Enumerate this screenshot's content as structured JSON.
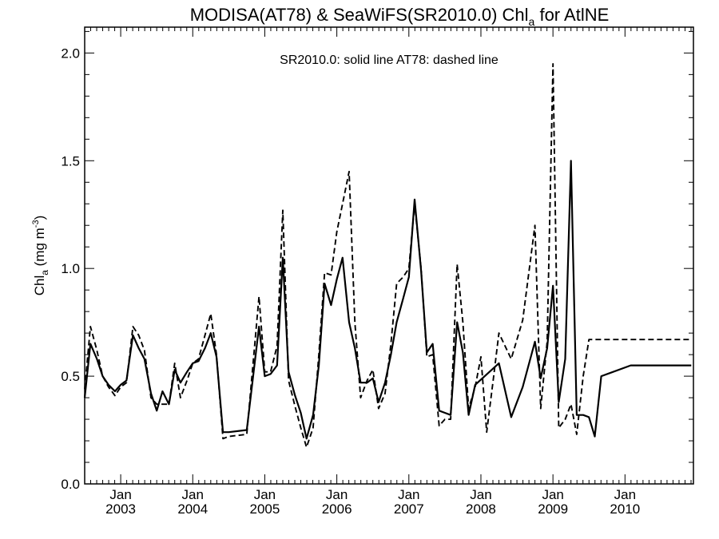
{
  "chart_data": {
    "type": "line",
    "title_main": "MODISA(AT78) & SeaWiFS(SR2010.0)  Chl",
    "title_sub": "a",
    "title_tail": " for AtlNE",
    "annotation": "SR2010.0: solid line   AT78: dashed line",
    "ylabel_main": "Chl",
    "ylabel_sub": "a",
    "ylabel_units": " (mg m",
    "ylabel_exp": "-3",
    "ylabel_close": ")",
    "ylim": [
      0.0,
      2.12
    ],
    "xlim": [
      2002.5,
      2010.95
    ],
    "y_ticks": [
      {
        "value": 0.0,
        "label": "0.0"
      },
      {
        "value": 0.5,
        "label": "0.5"
      },
      {
        "value": 1.0,
        "label": "1.0"
      },
      {
        "value": 1.5,
        "label": "1.5"
      },
      {
        "value": 2.0,
        "label": "2.0"
      }
    ],
    "x_ticks": [
      {
        "value": 2003.0,
        "month": "Jan",
        "year": "2003"
      },
      {
        "value": 2004.0,
        "month": "Jan",
        "year": "2004"
      },
      {
        "value": 2005.0,
        "month": "Jan",
        "year": "2005"
      },
      {
        "value": 2006.0,
        "month": "Jan",
        "year": "2006"
      },
      {
        "value": 2007.0,
        "month": "Jan",
        "year": "2007"
      },
      {
        "value": 2008.0,
        "month": "Jan",
        "year": "2008"
      },
      {
        "value": 2009.0,
        "month": "Jan",
        "year": "2009"
      },
      {
        "value": 2010.0,
        "month": "Jan",
        "year": "2010"
      }
    ],
    "series": [
      {
        "style": "solid",
        "x": [
          2002.5,
          2002.58,
          2002.67,
          2002.75,
          2002.83,
          2002.92,
          2003.0,
          2003.08,
          2003.17,
          2003.25,
          2003.33,
          2003.42,
          2003.5,
          2003.58,
          2003.67,
          2003.75,
          2003.83,
          2003.92,
          2004.0,
          2004.08,
          2004.17,
          2004.25,
          2004.33,
          2004.42,
          2004.5,
          2004.75,
          2004.92,
          2005.0,
          2005.08,
          2005.17,
          2005.25,
          2005.33,
          2005.42,
          2005.5,
          2005.58,
          2005.67,
          2005.75,
          2005.83,
          2005.92,
          2006.0,
          2006.08,
          2006.17,
          2006.25,
          2006.33,
          2006.42,
          2006.5,
          2006.58,
          2006.67,
          2006.75,
          2006.83,
          2006.92,
          2007.0,
          2007.08,
          2007.17,
          2007.25,
          2007.33,
          2007.42,
          2007.5,
          2007.58,
          2007.67,
          2007.75,
          2007.83,
          2007.92,
          2008.25,
          2008.42,
          2008.58,
          2008.75,
          2008.83,
          2008.92,
          2009.0,
          2009.08,
          2009.17,
          2009.25,
          2009.33,
          2009.42,
          2009.5,
          2009.58,
          2009.67,
          2010.08,
          2010.17,
          2010.25,
          2010.33,
          2010.42,
          2010.5,
          2010.58,
          2010.67,
          2010.75,
          2010.83,
          2010.92
        ],
        "y": [
          0.4,
          0.65,
          0.58,
          0.5,
          0.46,
          0.43,
          0.46,
          0.48,
          0.69,
          0.63,
          0.58,
          0.42,
          0.34,
          0.43,
          0.37,
          0.53,
          0.47,
          0.52,
          0.56,
          0.57,
          0.63,
          0.7,
          0.59,
          0.24,
          0.24,
          0.25,
          0.73,
          0.5,
          0.51,
          0.55,
          1.05,
          0.52,
          0.41,
          0.33,
          0.21,
          0.32,
          0.55,
          0.93,
          0.83,
          0.95,
          1.05,
          0.75,
          0.63,
          0.47,
          0.47,
          0.49,
          0.38,
          0.47,
          0.6,
          0.75,
          0.86,
          0.96,
          1.32,
          0.99,
          0.61,
          0.65,
          0.34,
          0.33,
          0.32,
          0.75,
          0.61,
          0.32,
          0.46,
          0.56,
          0.31,
          0.45,
          0.66,
          0.49,
          0.63,
          0.92,
          0.38,
          0.58,
          1.5,
          0.32,
          0.32,
          0.31,
          0.22,
          0.5,
          0.55,
          0.55,
          0.55,
          0.55,
          0.55,
          0.55,
          0.55,
          0.55,
          0.55,
          0.55,
          0.55
        ],
        "x_note": "",
        "y_note": ""
      },
      {
        "style": "dashed",
        "x": [
          2002.5,
          2002.58,
          2002.67,
          2002.75,
          2002.83,
          2002.92,
          2003.0,
          2003.08,
          2003.17,
          2003.25,
          2003.33,
          2003.42,
          2003.5,
          2003.58,
          2003.67,
          2003.75,
          2003.83,
          2003.92,
          2004.0,
          2004.08,
          2004.17,
          2004.25,
          2004.33,
          2004.42,
          2004.5,
          2004.75,
          2004.92,
          2005.0,
          2005.08,
          2005.17,
          2005.25,
          2005.33,
          2005.42,
          2005.5,
          2005.58,
          2005.67,
          2005.75,
          2005.83,
          2005.92,
          2006.0,
          2006.08,
          2006.17,
          2006.25,
          2006.33,
          2006.42,
          2006.5,
          2006.58,
          2006.67,
          2006.75,
          2006.83,
          2006.92,
          2007.0,
          2007.08,
          2007.17,
          2007.25,
          2007.33,
          2007.42,
          2007.5,
          2007.58,
          2007.67,
          2007.75,
          2007.83,
          2007.92,
          2008.0,
          2008.08,
          2008.17,
          2008.25,
          2008.42,
          2008.58,
          2008.75,
          2008.83,
          2008.92,
          2009.0,
          2009.08,
          2009.17,
          2009.25,
          2009.33,
          2009.42,
          2009.5,
          2009.58,
          2009.67,
          2010.08,
          2010.17,
          2010.25,
          2010.33,
          2010.42,
          2010.5,
          2010.58,
          2010.67,
          2010.75,
          2010.83,
          2010.92
        ],
        "y": [
          0.44,
          0.73,
          0.62,
          0.5,
          0.45,
          0.41,
          0.45,
          0.47,
          0.73,
          0.69,
          0.62,
          0.4,
          0.37,
          0.37,
          0.37,
          0.56,
          0.4,
          0.48,
          0.56,
          0.58,
          0.69,
          0.79,
          0.6,
          0.21,
          0.22,
          0.23,
          0.87,
          0.52,
          0.52,
          0.64,
          1.27,
          0.48,
          0.36,
          0.26,
          0.17,
          0.26,
          0.6,
          0.98,
          0.97,
          1.17,
          1.3,
          1.45,
          0.75,
          0.4,
          0.48,
          0.53,
          0.35,
          0.42,
          0.65,
          0.93,
          0.96,
          1.0,
          1.3,
          1.0,
          0.59,
          0.6,
          0.27,
          0.3,
          0.3,
          1.02,
          0.75,
          0.35,
          0.45,
          0.59,
          0.24,
          0.48,
          0.7,
          0.58,
          0.76,
          1.2,
          0.35,
          0.66,
          1.95,
          0.26,
          0.3,
          0.37,
          0.23,
          0.5,
          0.67,
          0.67,
          0.67,
          0.67,
          0.67,
          0.67,
          0.67,
          0.67,
          0.67,
          0.67,
          0.67,
          0.67,
          0.67,
          0.67
        ]
      }
    ]
  }
}
